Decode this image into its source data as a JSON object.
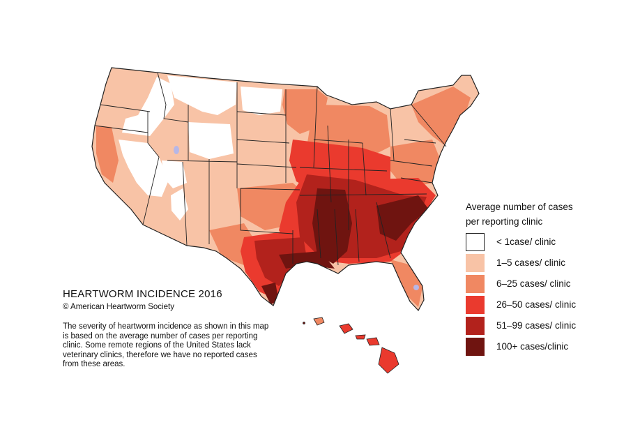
{
  "title": "HEARTWORM INCIDENCE 2016",
  "copyright": "© American Heartworm Society",
  "description": "The severity of heartworm incidence as shown in this map is based on the average number of cases per reporting clinic.  Some remote regions of the United States lack veterinary clinics, therefore we have no reported cases from these areas.",
  "legend": {
    "title_line1": "Average number of cases",
    "title_line2": "per reporting clinic",
    "items": [
      {
        "label": "< 1case/ clinic",
        "color": "#ffffff"
      },
      {
        "label": "1–5 cases/ clinic",
        "color": "#f8c3a6"
      },
      {
        "label": "6–25  cases/ clinic",
        "color": "#f08862"
      },
      {
        "label": "26–50  cases/ clinic",
        "color": "#ea3a2e"
      },
      {
        "label": "51–99 cases/ clinic",
        "color": "#b2221c"
      },
      {
        "label": "100+ cases/clinic",
        "color": "#6f1410"
      }
    ]
  },
  "colors": {
    "border": "#222222",
    "lake": "#b7b7e6"
  }
}
